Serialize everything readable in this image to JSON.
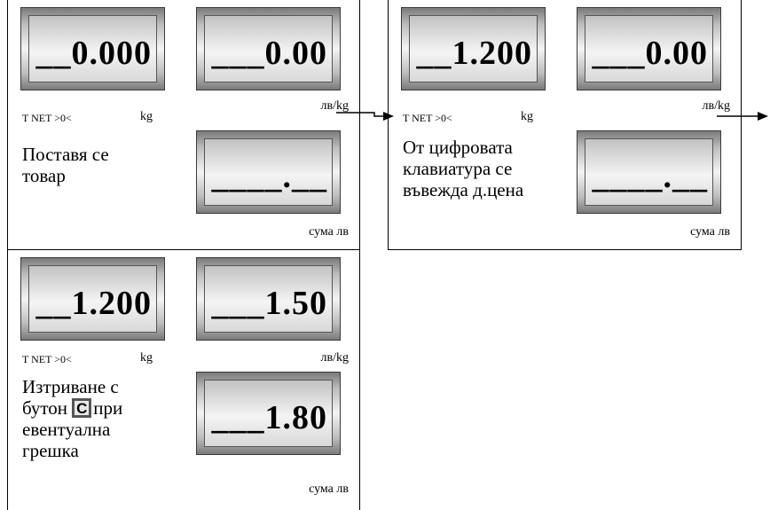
{
  "panel1": {
    "weight": "__0.000",
    "price": "___0.00",
    "status": "T NET >0<",
    "weight_unit": "kg",
    "price_unit": "лв/kg",
    "message": "Поставя се товар",
    "sum": "____.__",
    "sum_unit": "сума лв"
  },
  "panel2": {
    "weight": "__1.200",
    "price": "___0.00",
    "status": "T NET >0<",
    "weight_unit": "kg",
    "price_unit": "лв/kg",
    "message": "От цифровата клавиатура се въвежда д.цена",
    "sum": "____.__",
    "sum_unit": "сума лв"
  },
  "panel3": {
    "weight": "__1.200",
    "price": "___1.50",
    "status": "T NET >0<",
    "weight_unit": "kg",
    "price_unit": "лв/kg",
    "message_line1": "Изтриване с",
    "message_before_key": "бутон",
    "key_label": "C",
    "message_after_key": "при",
    "message_line3": "евентуална",
    "message_line4": "грешка",
    "sum": "___1.80",
    "sum_unit": "сума лв"
  }
}
